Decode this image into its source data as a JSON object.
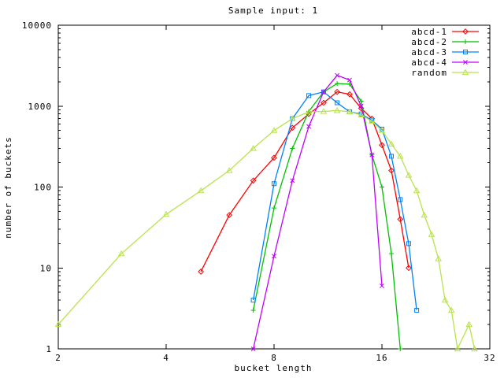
{
  "window": {
    "title": "Sample input: 1"
  },
  "chart_data": {
    "type": "line",
    "title": "Sample input: 1",
    "xlabel": "bucket length",
    "ylabel": "number of buckets",
    "x_scale": "log2",
    "y_scale": "log10",
    "xlim": [
      2,
      32
    ],
    "ylim": [
      1,
      10000
    ],
    "x_ticks": [
      2,
      4,
      8,
      16,
      32
    ],
    "y_ticks": [
      1,
      10,
      100,
      1000,
      10000
    ],
    "grid": "off",
    "legend_position": "top-right-inside",
    "series": [
      {
        "name": "abcd-1",
        "color": "#ff0000",
        "marker": "diamond",
        "x": [
          5,
          6,
          7,
          8,
          9,
          10,
          11,
          12,
          13,
          14,
          15,
          16,
          17,
          18,
          19
        ],
        "y": [
          9,
          45,
          120,
          230,
          540,
          800,
          1100,
          1500,
          1400,
          940,
          700,
          330,
          160,
          40,
          10
        ]
      },
      {
        "name": "abcd-2",
        "color": "#00c000",
        "marker": "plus",
        "x": [
          7,
          8,
          9,
          10,
          11,
          12,
          13,
          14,
          15,
          16,
          17,
          18
        ],
        "y": [
          3,
          55,
          300,
          860,
          1500,
          1900,
          1870,
          1150,
          250,
          100,
          15,
          1
        ]
      },
      {
        "name": "abcd-3",
        "color": "#0080ff",
        "marker": "square",
        "x": [
          7,
          8,
          9,
          10,
          11,
          12,
          13,
          14,
          15,
          16,
          17,
          18,
          19,
          20
        ],
        "y": [
          4,
          110,
          700,
          1350,
          1500,
          1100,
          850,
          800,
          670,
          520,
          240,
          70,
          20,
          3
        ]
      },
      {
        "name": "abcd-4",
        "color": "#c000ff",
        "marker": "x",
        "x": [
          7,
          8,
          9,
          10,
          11,
          12,
          13,
          14,
          15,
          16
        ],
        "y": [
          1,
          14,
          120,
          560,
          1500,
          2400,
          2100,
          1000,
          250,
          6
        ]
      },
      {
        "name": "random",
        "color": "#b9e34b",
        "marker": "triangle",
        "x": [
          2,
          3,
          4,
          5,
          6,
          7,
          8,
          9,
          10,
          11,
          12,
          13,
          14,
          15,
          16,
          17,
          18,
          19,
          20,
          21,
          22,
          23,
          24,
          25,
          26,
          28,
          29
        ],
        "y": [
          2,
          15,
          46,
          90,
          160,
          300,
          500,
          700,
          850,
          860,
          880,
          850,
          780,
          650,
          500,
          340,
          240,
          140,
          90,
          45,
          26,
          13,
          4,
          3,
          1,
          2,
          1
        ]
      }
    ]
  }
}
